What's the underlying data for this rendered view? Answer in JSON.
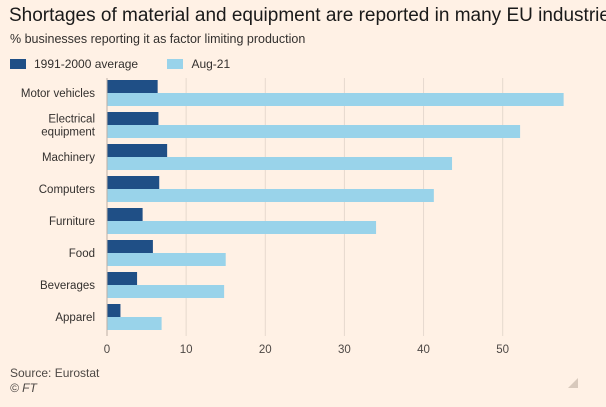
{
  "header": {
    "title": "Shortages of material and equipment are reported in many EU industries",
    "subtitle": "% businesses reporting it as factor limiting production"
  },
  "footer": {
    "source": "Source: Eurostat",
    "copyright": "© FT"
  },
  "icons": {
    "corner": "resize-handle-icon"
  },
  "colors": {
    "background": "#fff1e5",
    "series_1991_2000": "#1f4f86",
    "series_aug21": "#99d3ea",
    "grid": "#e6d9ce"
  },
  "chart_data": {
    "type": "bar",
    "orientation": "horizontal",
    "title": "Shortages of material and equipment are reported in many EU industries",
    "subtitle": "% businesses reporting it as factor limiting production",
    "categories": [
      [
        "Motor vehicles"
      ],
      [
        "Electrical",
        "equipment"
      ],
      [
        "Machinery"
      ],
      [
        "Computers"
      ],
      [
        "Furniture"
      ],
      [
        "Food"
      ],
      [
        "Beverages"
      ],
      [
        "Apparel"
      ]
    ],
    "series": [
      {
        "name": "1991-2000 average",
        "values": [
          6.4,
          6.5,
          7.6,
          6.6,
          4.5,
          5.8,
          3.8,
          1.7
        ]
      },
      {
        "name": "Aug-21",
        "values": [
          57.7,
          52.2,
          43.6,
          41.3,
          34.0,
          15.0,
          14.8,
          6.9
        ]
      }
    ],
    "xticks": [
      0,
      10,
      20,
      30,
      40,
      50
    ],
    "xlim": [
      0,
      58
    ],
    "grid": true,
    "legend": "top-left"
  }
}
